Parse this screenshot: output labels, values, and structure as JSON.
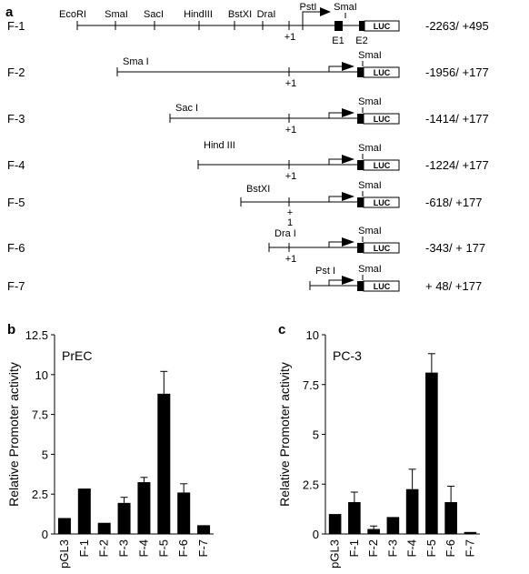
{
  "panel_a": {
    "label": "a",
    "constructs": [
      {
        "name": "F-1",
        "range": "-2263/ +495",
        "start_site": "EcoRI"
      },
      {
        "name": "F-2",
        "range": "-1956/ +177",
        "start_site": "Sma I"
      },
      {
        "name": "F-3",
        "range": "-1414/ +177",
        "start_site": "Sac I"
      },
      {
        "name": "F-4",
        "range": "-1224/ +177",
        "start_site": "Hind III"
      },
      {
        "name": "F-5",
        "range": "-618/ +177",
        "start_site": "BstXI"
      },
      {
        "name": "F-6",
        "range": "-343/ + 177",
        "start_site": "Dra I"
      },
      {
        "name": "F-7",
        "range": "+ 48/ +177",
        "start_site": "Pst I"
      }
    ],
    "f1_sites": [
      "EcoRI",
      "SmaI",
      "SacI",
      "HindIII",
      "BstXI",
      "DraI",
      "PstI",
      "SmaI"
    ],
    "end_site": "SmaI",
    "tss_label": "+1",
    "tss_label_f5_top": "+",
    "tss_label_f5_bottom": "1",
    "exon_labels": [
      "E1",
      "E2"
    ],
    "reporter_label": "LUC"
  },
  "chart_data": [
    {
      "panel": "b",
      "type": "bar",
      "title": "PrEC",
      "ylabel": "Relative Promoter activity",
      "xlabel": "",
      "categories": [
        "pGL3",
        "F-1",
        "F-2",
        "F-3",
        "F-4",
        "F-5",
        "F-6",
        "F-7"
      ],
      "values": [
        1.0,
        2.85,
        0.7,
        1.95,
        3.25,
        8.8,
        2.6,
        0.55
      ],
      "errors": [
        0,
        0,
        0,
        0.35,
        0.3,
        1.4,
        0.55,
        0
      ],
      "ylim": [
        0,
        12.5
      ],
      "yticks": [
        "0",
        "2.5",
        "5",
        "7.5",
        "10",
        "12.5"
      ],
      "grid": false
    },
    {
      "panel": "c",
      "type": "bar",
      "title": "PC-3",
      "ylabel": "Relative Promoter activity",
      "xlabel": "",
      "categories": [
        "pGL3",
        "F-1",
        "F-2",
        "F-3",
        "F-4",
        "F-5",
        "F-6",
        "F-7"
      ],
      "values": [
        1.0,
        1.6,
        0.25,
        0.85,
        2.25,
        8.1,
        1.6,
        0.1
      ],
      "errors": [
        0,
        0.5,
        0.15,
        0,
        1.0,
        0.95,
        0.8,
        0
      ],
      "ylim": [
        0,
        10
      ],
      "yticks": [
        "0",
        "2.5",
        "5",
        "7.5",
        "10"
      ],
      "grid": false
    }
  ]
}
